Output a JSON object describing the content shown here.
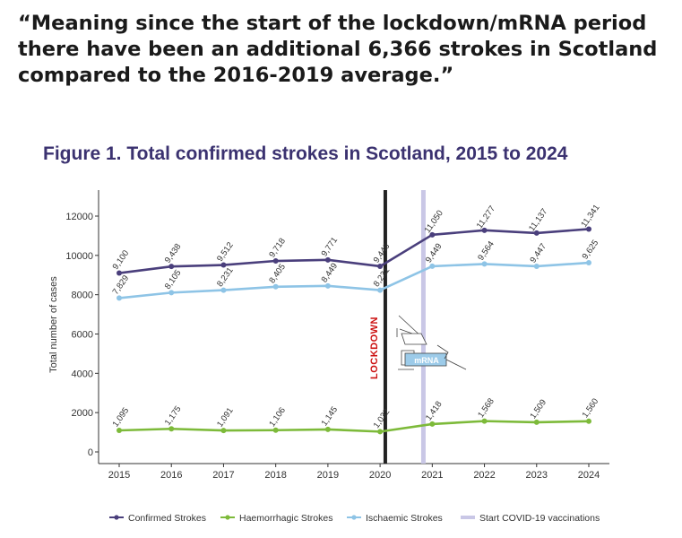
{
  "quote": {
    "open": "“Meaning since the start of the lockdown/mRNA period there have been an additional ",
    "highlight": "6,366",
    "close": " strokes in Scotland compared to the 2016-2019 average.”"
  },
  "chart_data": {
    "type": "line",
    "title": "Figure 1. Total confirmed strokes in Scotland, 2015 to 2024",
    "ylabel": "Total number of cases",
    "xlabel": "",
    "x": [
      2015,
      2016,
      2017,
      2018,
      2019,
      2020,
      2021,
      2022,
      2023,
      2024
    ],
    "x_tick_labels": [
      "2015",
      "2016",
      "2017",
      "2018",
      "2019",
      "2020",
      "2021",
      "2022",
      "2023",
      "2024"
    ],
    "ylim": [
      0,
      13000
    ],
    "y_ticks": [
      0,
      2000,
      4000,
      6000,
      8000,
      10000,
      12000
    ],
    "y_tick_labels": [
      "0",
      "2000",
      "4000",
      "6000",
      "8000",
      "10000",
      "12000"
    ],
    "grid": false,
    "legend_position": "bottom",
    "series": [
      {
        "name": "Confirmed Strokes",
        "color": "#4a3f7c",
        "values": [
          9100,
          9438,
          9512,
          9718,
          9771,
          9446,
          11050,
          11277,
          11137,
          11341
        ],
        "labels": [
          "9,100",
          "9,438",
          "9,512",
          "9,718",
          "9,771",
          "9,446",
          "11,050",
          "11,277",
          "11,137",
          "11,341"
        ]
      },
      {
        "name": "Ischaemic Strokes",
        "color": "#8ec4e6",
        "values": [
          7829,
          8105,
          8231,
          8405,
          8449,
          8231,
          9449,
          9564,
          9447,
          9625
        ],
        "labels": [
          "7,829",
          "8,105",
          "8,231",
          "8,405",
          "8,449",
          "8,231",
          "9,449",
          "9,564",
          "9,447",
          "9,625"
        ]
      },
      {
        "name": "Haemorrhagic Strokes",
        "color": "#7dba3a",
        "values": [
          1095,
          1175,
          1091,
          1106,
          1145,
          1032,
          1418,
          1568,
          1509,
          1560
        ],
        "labels": [
          "1,095",
          "1,175",
          "1,091",
          "1,106",
          "1,145",
          "1,032",
          "1,418",
          "1,568",
          "1,509",
          "1,560"
        ]
      }
    ],
    "legend": [
      {
        "label": "Confirmed Strokes",
        "kind": "line-marker",
        "color": "#4a3f7c"
      },
      {
        "label": "Haemorrhagic Strokes",
        "kind": "line-marker",
        "color": "#7dba3a"
      },
      {
        "label": "Ischaemic Strokes",
        "kind": "line-marker",
        "color": "#8ec4e6"
      },
      {
        "label": "Start COVID-19 vaccinations",
        "kind": "band",
        "color": "#c9c7e6"
      }
    ],
    "annotations": {
      "lockdown_label": "LOCKDOWN",
      "lockdown_color": "#cc1111",
      "lockdown_x": 2020.1,
      "vaccination_x": 2020.83,
      "mrna_label": "mRNA"
    }
  }
}
